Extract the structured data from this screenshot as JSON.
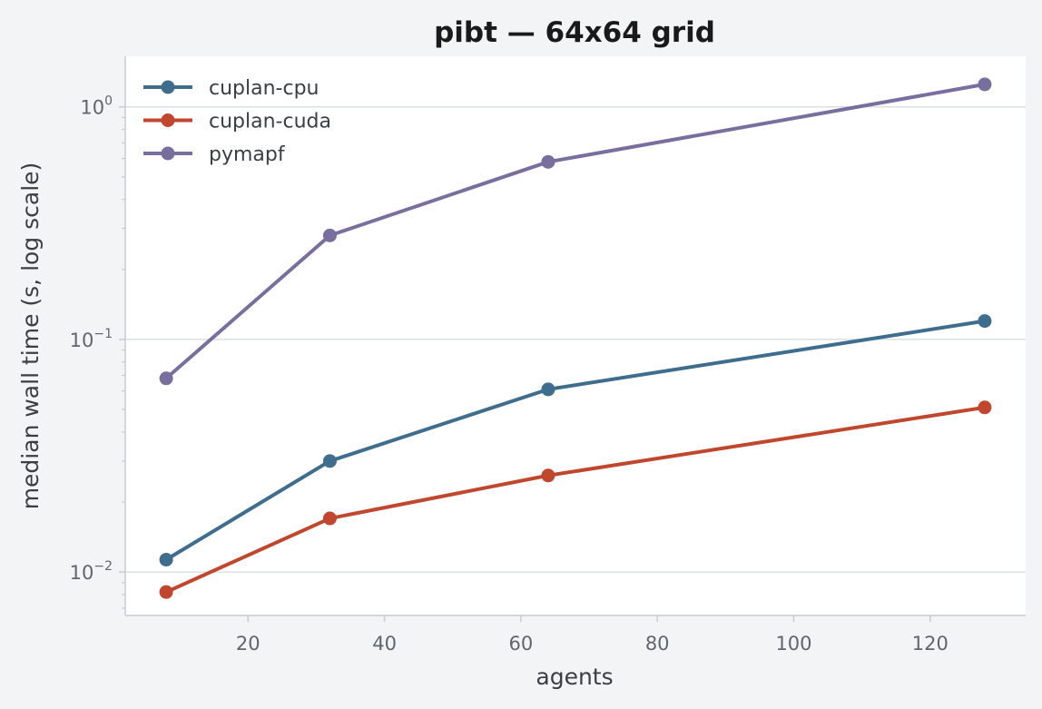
{
  "chart_data": {
    "type": "line",
    "title": "pibt — 64x64 grid",
    "xlabel": "agents",
    "ylabel": "median wall time (s, log scale)",
    "y_scale": "log",
    "x_ticks": [
      20,
      40,
      60,
      80,
      100,
      120
    ],
    "x_tick_labels": [
      "20",
      "40",
      "60",
      "80",
      "100",
      "120"
    ],
    "y_ticks": [
      {
        "value": 0.01,
        "base": "10",
        "exp": "−2"
      },
      {
        "value": 0.1,
        "base": "10",
        "exp": "−1"
      },
      {
        "value": 1,
        "base": "10",
        "exp": "0"
      }
    ],
    "xlim": [
      2,
      134
    ],
    "ylim": [
      0.0065,
      1.65
    ],
    "grid": "horizontal",
    "legend_position": "top-left",
    "x": [
      8,
      32,
      64,
      128
    ],
    "series": [
      {
        "name": "cuplan-cpu",
        "color": "#3e6d8e",
        "values": [
          0.0113,
          0.03,
          0.061,
          0.12
        ]
      },
      {
        "name": "cuplan-cuda",
        "color": "#c0472e",
        "values": [
          0.0082,
          0.017,
          0.026,
          0.051
        ]
      },
      {
        "name": "pymapf",
        "color": "#796f9e",
        "values": [
          0.068,
          0.28,
          0.58,
          1.25
        ]
      }
    ]
  }
}
